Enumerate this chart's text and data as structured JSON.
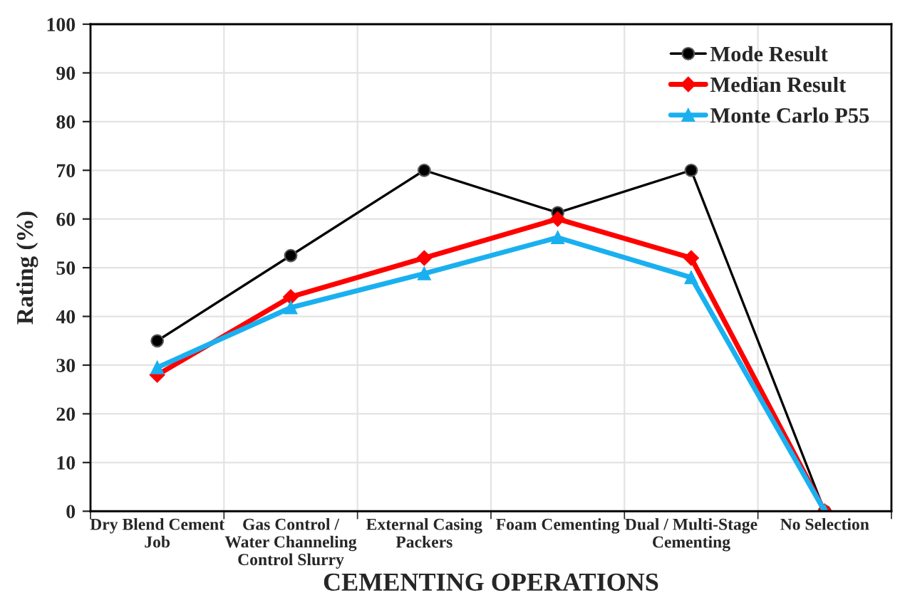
{
  "chart_data": {
    "type": "line",
    "xlabel": "CEMENTING OPERATIONS",
    "ylabel": "Rating (%)",
    "categories": [
      "Dry Blend Cement\nJob",
      "Gas Control /\nWater Channeling\nControl Slurry",
      "External Casing\nPackers",
      "Foam Cementing",
      "Dual / Multi-Stage\nCementing",
      "No Selection"
    ],
    "series": [
      {
        "name": "Mode Result",
        "color": "#000000",
        "marker": "circle",
        "values": [
          35,
          52.5,
          70,
          61.3,
          70,
          0
        ]
      },
      {
        "name": "Median Result",
        "color": "#ff0000",
        "marker": "diamond",
        "values": [
          28,
          44,
          52,
          60,
          52,
          0
        ]
      },
      {
        "name": "Monte Carlo P55",
        "color": "#1ab0f0",
        "marker": "triangle",
        "values": [
          29.5,
          41.8,
          48.8,
          56.2,
          48,
          0
        ]
      }
    ],
    "ylim": [
      0,
      100
    ],
    "yticks": [
      0,
      10,
      20,
      30,
      40,
      50,
      60,
      70,
      80,
      90,
      100
    ],
    "grid": true,
    "legend": "top right"
  }
}
